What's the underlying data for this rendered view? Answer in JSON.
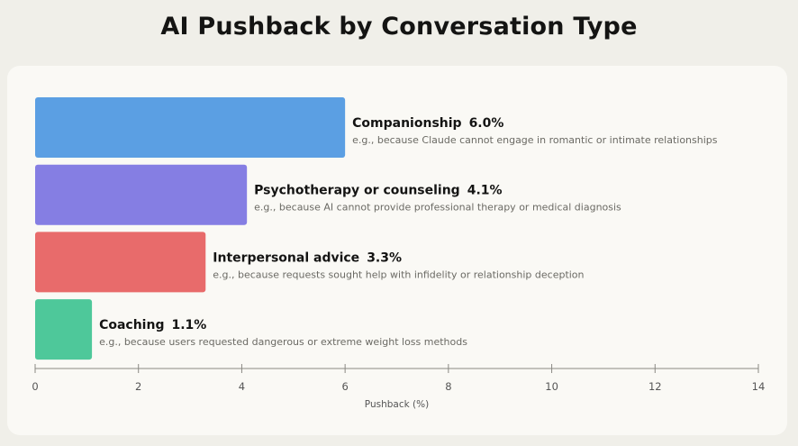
{
  "chart_data": {
    "type": "bar",
    "orientation": "horizontal",
    "title": "AI Pushback by Conversation Type",
    "xlabel": "Pushback (%)",
    "xlim": [
      0,
      14
    ],
    "xticks": [
      0,
      2,
      4,
      6,
      8,
      10,
      12,
      14
    ],
    "grid": false,
    "categories": [
      "Companionship",
      "Psychotherapy or counseling",
      "Interpersonal advice",
      "Coaching"
    ],
    "values": [
      6.0,
      4.1,
      3.3,
      1.1
    ],
    "value_labels": [
      "6.0%",
      "4.1%",
      "3.3%",
      "1.1%"
    ],
    "examples": [
      "e.g., because Claude cannot engage in romantic or intimate relationships",
      "e.g., because AI cannot provide professional therapy or medical diagnosis",
      "e.g., because requests sought help with infidelity or relationship deception",
      "e.g., because users requested dangerous or extreme weight loss methods"
    ],
    "colors": [
      "#5b9fe3",
      "#857ee3",
      "#e86b6b",
      "#4ec89a"
    ]
  }
}
